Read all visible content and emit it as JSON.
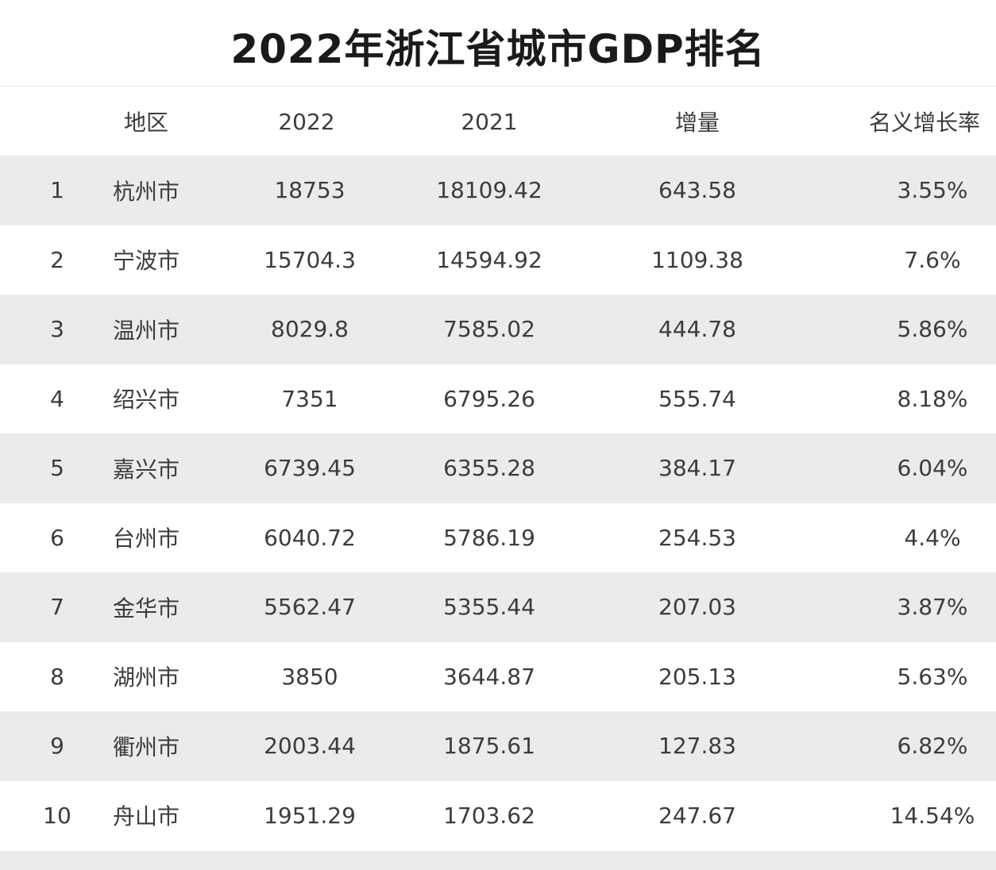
{
  "title": "2022年浙江省城市GDP排名",
  "table": {
    "headers": {
      "rank": "",
      "city": "地区",
      "gdp_2022": "2022",
      "gdp_2021": "2021",
      "increase": "增量",
      "growth": "名义增长率"
    },
    "rows": [
      {
        "rank": "1",
        "city": "杭州市",
        "gdp_2022": "18753",
        "gdp_2021": "18109.42",
        "increase": "643.58",
        "growth": "3.55%"
      },
      {
        "rank": "2",
        "city": "宁波市",
        "gdp_2022": "15704.3",
        "gdp_2021": "14594.92",
        "increase": "1109.38",
        "growth": "7.6%"
      },
      {
        "rank": "3",
        "city": "温州市",
        "gdp_2022": "8029.8",
        "gdp_2021": "7585.02",
        "increase": "444.78",
        "growth": "5.86%"
      },
      {
        "rank": "4",
        "city": "绍兴市",
        "gdp_2022": "7351",
        "gdp_2021": "6795.26",
        "increase": "555.74",
        "growth": "8.18%"
      },
      {
        "rank": "5",
        "city": "嘉兴市",
        "gdp_2022": "6739.45",
        "gdp_2021": "6355.28",
        "increase": "384.17",
        "growth": "6.04%"
      },
      {
        "rank": "6",
        "city": "台州市",
        "gdp_2022": "6040.72",
        "gdp_2021": "5786.19",
        "increase": "254.53",
        "growth": "4.4%"
      },
      {
        "rank": "7",
        "city": "金华市",
        "gdp_2022": "5562.47",
        "gdp_2021": "5355.44",
        "increase": "207.03",
        "growth": "3.87%"
      },
      {
        "rank": "8",
        "city": "湖州市",
        "gdp_2022": "3850",
        "gdp_2021": "3644.87",
        "increase": "205.13",
        "growth": "5.63%"
      },
      {
        "rank": "9",
        "city": "衢州市",
        "gdp_2022": "2003.44",
        "gdp_2021": "1875.61",
        "increase": "127.83",
        "growth": "6.82%"
      },
      {
        "rank": "10",
        "city": "舟山市",
        "gdp_2022": "1951.29",
        "gdp_2021": "1703.62",
        "increase": "247.67",
        "growth": "14.54%"
      }
    ]
  },
  "colors": {
    "shaded_row": "#ebebed",
    "plain_row": "#ffffff",
    "title_text": "#1a1a1a",
    "cell_text": "#3c3c3c"
  }
}
